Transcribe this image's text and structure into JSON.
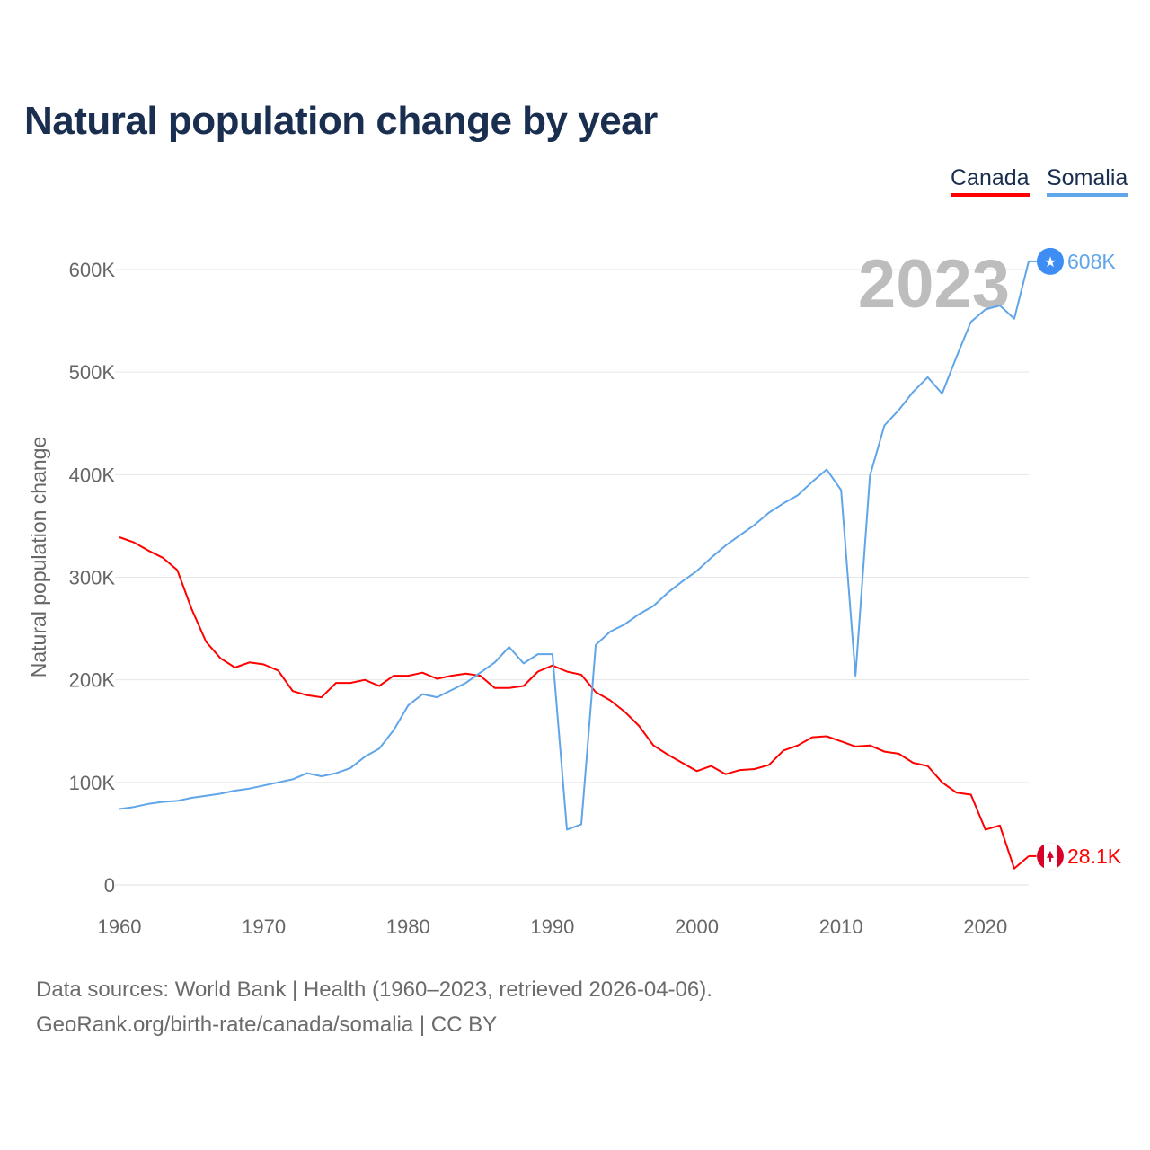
{
  "title": "Natural population change by year",
  "footer": {
    "line1": "Data sources: World Bank | Health (1960–2023, retrieved 2026-04-06).",
    "line2": "GeoRank.org/birth-rate/canada/somalia | CC BY"
  },
  "colors": {
    "canada": "#ff0000",
    "somalia": "#5fa5e8",
    "grid": "#e6e6e6",
    "axis_text": "#666666",
    "year_watermark": "#bdbdbd"
  },
  "chart_data": {
    "type": "line",
    "title": "Natural population change by year",
    "xlabel": "",
    "ylabel": "Natural population change",
    "xlim": [
      1960,
      2023
    ],
    "ylim": [
      0,
      600000
    ],
    "x_ticks": [
      1960,
      1970,
      1980,
      1990,
      2000,
      2010,
      2020
    ],
    "x_tick_labels": [
      "1960",
      "1970",
      "1980",
      "1990",
      "2000",
      "2010",
      "2020"
    ],
    "y_ticks": [
      0,
      100000,
      200000,
      300000,
      400000,
      500000,
      600000
    ],
    "y_tick_labels": [
      "0",
      "100K",
      "200K",
      "300K",
      "400K",
      "500K",
      "600K"
    ],
    "grid": true,
    "legend_position": "top-right",
    "watermark_year": "2023",
    "x_start": 1960,
    "series": [
      {
        "name": "Canada",
        "color": "#ff0000",
        "end_label": "28.1K",
        "flag_icon": "canada-flag-icon",
        "values": [
          339000,
          334000,
          326000,
          319000,
          307000,
          269000,
          237000,
          221000,
          212000,
          217000,
          215000,
          209000,
          189000,
          185000,
          183000,
          197000,
          197000,
          200000,
          194000,
          204000,
          204000,
          207000,
          201000,
          204000,
          206000,
          204000,
          192000,
          192000,
          194000,
          208000,
          214000,
          208000,
          205000,
          188000,
          180000,
          169000,
          155000,
          136000,
          127000,
          119000,
          111000,
          116000,
          108000,
          112000,
          113000,
          117000,
          131000,
          136000,
          144000,
          145000,
          140000,
          135000,
          136000,
          130000,
          128000,
          119000,
          116000,
          100000,
          90000,
          88000,
          54000,
          58000,
          16000,
          28100
        ]
      },
      {
        "name": "Somalia",
        "color": "#5fa5e8",
        "end_label": "608K",
        "flag_icon": "somalia-flag-icon",
        "values": [
          74000,
          76000,
          79000,
          81000,
          82000,
          85000,
          87000,
          89000,
          92000,
          94000,
          97000,
          100000,
          103000,
          109000,
          106000,
          109000,
          114000,
          125000,
          133000,
          151000,
          175000,
          186000,
          183000,
          190000,
          197000,
          207000,
          217000,
          232000,
          216000,
          225000,
          225000,
          54000,
          59000,
          234000,
          247000,
          254000,
          264000,
          272000,
          285000,
          296000,
          306000,
          319000,
          331000,
          341000,
          351000,
          363000,
          372000,
          380000,
          393000,
          405000,
          385000,
          204000,
          399000,
          448000,
          463000,
          481000,
          495000,
          479000,
          515000,
          549000,
          561000,
          565000,
          552000,
          608000
        ]
      }
    ]
  }
}
